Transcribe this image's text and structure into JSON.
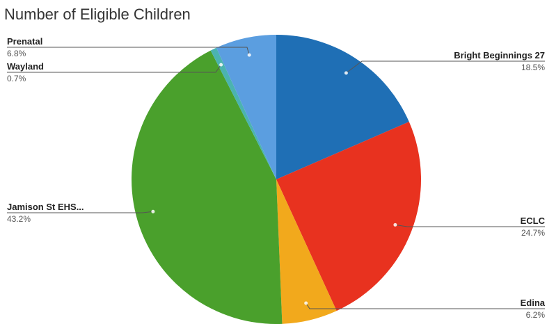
{
  "chart_data": {
    "type": "pie",
    "title": "Number of Eligible Children",
    "slices": [
      {
        "label": "Bright Beginnings 27",
        "percent_label": "18.5%",
        "value": 18.5,
        "color": "#1f6fb5"
      },
      {
        "label": "ECLC",
        "percent_label": "24.7%",
        "value": 24.7,
        "color": "#e8321f"
      },
      {
        "label": "Edina",
        "percent_label": "6.2%",
        "value": 6.2,
        "color": "#f2a91c"
      },
      {
        "label": "Jamison St EHS...",
        "percent_label": "43.2%",
        "value": 43.2,
        "color": "#4aa02c"
      },
      {
        "label": "Wayland",
        "percent_label": "0.7%",
        "value": 0.7,
        "color": "#4bb3b0"
      },
      {
        "label": "Prenatal",
        "percent_label": "6.8%",
        "value": 6.8,
        "color": "#5b9ee0"
      }
    ]
  }
}
